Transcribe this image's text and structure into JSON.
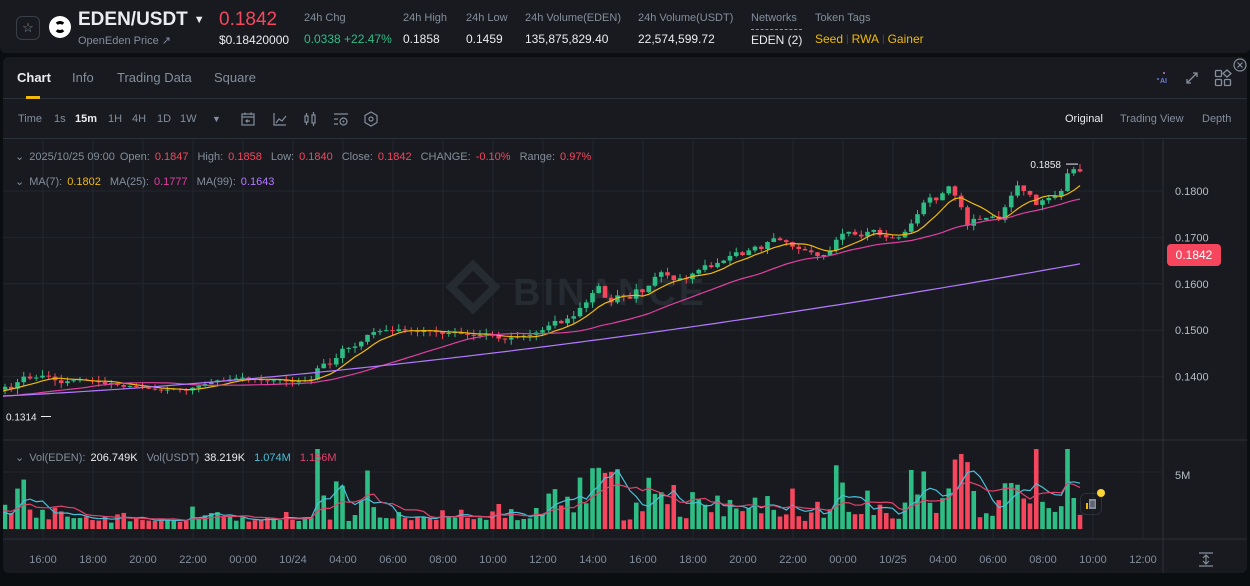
{
  "header": {
    "pair": "EDEN/USDT",
    "subtitle": "OpenEden Price ↗",
    "last_price": "0.1842",
    "last_price_usd": "$0.18420000",
    "stats": [
      {
        "label": "24h Chg",
        "value": "0.0338 +22.47%",
        "color": "green"
      },
      {
        "label": "24h High",
        "value": "0.1858"
      },
      {
        "label": "24h Low",
        "value": "0.1459"
      },
      {
        "label": "24h Volume(EDEN)",
        "value": "135,875,829.40"
      },
      {
        "label": "24h Volume(USDT)",
        "value": "22,574,599.72"
      }
    ],
    "networks": {
      "label": "Networks",
      "value": "EDEN (2)"
    },
    "token_tags": {
      "label": "Token Tags",
      "tags": [
        "Seed",
        "RWA",
        "Gainer"
      ]
    }
  },
  "tabs": [
    {
      "label": "Chart",
      "active": true
    },
    {
      "label": "Info"
    },
    {
      "label": "Trading Data"
    },
    {
      "label": "Square"
    }
  ],
  "toolbar": {
    "time_label": "Time",
    "intervals": [
      "1s",
      "15m",
      "1H",
      "4H",
      "1D",
      "1W"
    ],
    "active_interval": "15m",
    "views": [
      "Original",
      "Trading View",
      "Depth"
    ],
    "active_view": "Original"
  },
  "ohlc_legend": {
    "datetime": "2025/10/25 09:00",
    "open_label": "Open:",
    "open": "0.1847",
    "high_label": "High:",
    "high": "0.1858",
    "low_label": "Low:",
    "low": "0.1840",
    "close_label": "Close:",
    "close": "0.1842",
    "change_label": "CHANGE:",
    "change": "-0.10%",
    "range_label": "Range:",
    "range": "0.97%"
  },
  "ma_legend": {
    "ma7_label": "MA(7):",
    "ma7": "0.1802",
    "ma25_label": "MA(25):",
    "ma25": "0.1777",
    "ma99_label": "MA(99):",
    "ma99": "0.1643"
  },
  "vol_legend": {
    "eden_label": "Vol(EDEN):",
    "eden": "206.749K",
    "usdt_label": "Vol(USDT)",
    "usdt": "38.219K",
    "ma_a": "1.074M",
    "ma_b": "1.156M"
  },
  "price_tag": "0.1842",
  "high_marker": "0.1858",
  "low_marker": "0.1314",
  "watermark": "BINANCE",
  "colors": {
    "up": "#2ebd85",
    "down": "#f6465d",
    "ma7": "#f0b90b",
    "ma25": "#e040a0",
    "ma99": "#b27aff",
    "vol_ma_a": "#48c0d8",
    "vol_ma_b": "#e0436b",
    "accent": "#f0b90b"
  },
  "chart_data": {
    "type": "candlestick",
    "title": "EDEN/USDT 15m",
    "interval": "15m",
    "y_ticks": [
      "0.1800",
      "0.1700",
      "0.1600",
      "0.1500",
      "0.1400"
    ],
    "ylim": [
      0.128,
      0.192
    ],
    "x_ticks": [
      "16:00",
      "18:00",
      "20:00",
      "22:00",
      "00:00",
      "10/24",
      "04:00",
      "06:00",
      "08:00",
      "10:00",
      "12:00",
      "14:00",
      "16:00",
      "18:00",
      "20:00",
      "22:00",
      "00:00",
      "10/25",
      "04:00",
      "06:00",
      "08:00",
      "10:00",
      "12:00"
    ],
    "volume_axis_ticks": [
      "5M"
    ],
    "series": [
      {
        "name": "MA(7)",
        "last": 0.1802
      },
      {
        "name": "MA(25)",
        "last": 0.1777
      },
      {
        "name": "MA(99)",
        "last": 0.1643
      }
    ],
    "close_path": [
      0.1365,
      0.1362,
      0.136,
      0.1356,
      0.1355,
      0.135,
      0.1352,
      0.1358,
      0.1355,
      0.1348,
      0.1332,
      0.1342,
      0.1348,
      0.135,
      0.1354,
      0.1352,
      0.1368,
      0.1374,
      0.1372,
      0.1374,
      0.1372,
      0.1378,
      0.1374,
      0.1388,
      0.14,
      0.1396,
      0.1398,
      0.1402,
      0.14,
      0.1392,
      0.1386,
      0.139,
      0.1392,
      0.1394,
      0.1392,
      0.139,
      0.1388,
      0.1384,
      0.1386,
      0.1382,
      0.1378,
      0.138,
      0.1378,
      0.1376,
      0.1374,
      0.1372,
      0.137,
      0.1372,
      0.1374,
      0.1372,
      0.137,
      0.1376,
      0.138,
      0.1384,
      0.1388,
      0.1392,
      0.139,
      0.1394,
      0.1396,
      0.1398,
      0.1396,
      0.1394,
      0.1392,
      0.139,
      0.1392,
      0.1394,
      0.139,
      0.1388,
      0.139,
      0.1392,
      0.1394,
      0.1418,
      0.1428,
      0.1426,
      0.144,
      0.146,
      0.1462,
      0.1465,
      0.1475,
      0.149,
      0.1496,
      0.1498,
      0.15,
      0.1498,
      0.1502,
      0.15,
      0.1498,
      0.1496,
      0.15,
      0.1498,
      0.1496,
      0.1492,
      0.1494,
      0.1496,
      0.1492,
      0.149,
      0.1488,
      0.149,
      0.1492,
      0.1488,
      0.1482,
      0.148,
      0.1484,
      0.1486,
      0.1488,
      0.149,
      0.1495,
      0.15,
      0.151,
      0.152,
      0.1515,
      0.1525,
      0.153,
      0.1548,
      0.156,
      0.158,
      0.1595,
      0.157,
      0.156,
      0.1575,
      0.1572,
      0.1568,
      0.1588,
      0.1582,
      0.1596,
      0.1615,
      0.1625,
      0.1618,
      0.1608,
      0.1612,
      0.161,
      0.1622,
      0.163,
      0.164,
      0.1636,
      0.1645,
      0.165,
      0.166,
      0.1668,
      0.1662,
      0.1672,
      0.168,
      0.1675,
      0.169,
      0.1698,
      0.1694,
      0.169,
      0.168,
      0.1675,
      0.1672,
      0.1668,
      0.166,
      0.1662,
      0.1672,
      0.1695,
      0.1708,
      0.1712,
      0.1706,
      0.1702,
      0.1712,
      0.1716,
      0.1705,
      0.17,
      0.1698,
      0.17,
      0.1712,
      0.173,
      0.175,
      0.1775,
      0.1786,
      0.178,
      0.1795,
      0.181,
      0.179,
      0.1765,
      0.1725,
      0.174,
      0.1738,
      0.1742,
      0.1745,
      0.1738,
      0.1765,
      0.179,
      0.1812,
      0.18,
      0.1792,
      0.177,
      0.178,
      0.1785,
      0.179,
      0.18,
      0.1838,
      0.1847,
      0.1842
    ]
  }
}
